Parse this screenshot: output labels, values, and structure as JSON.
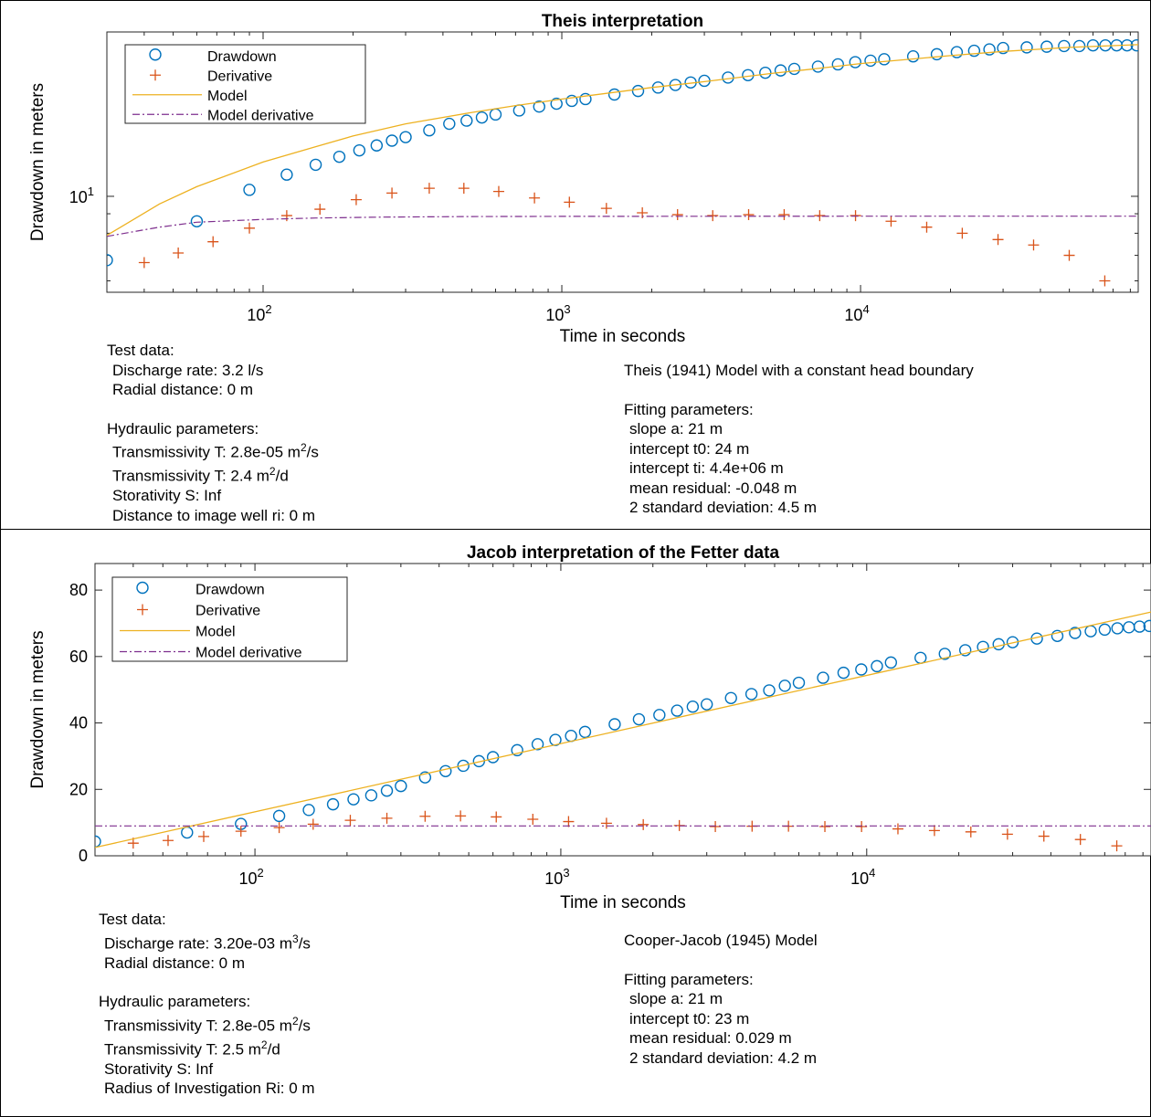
{
  "colors": {
    "drawdown": "#0072BD",
    "derivative": "#D95319",
    "model": "#EDB120",
    "model_derivative": "#7E2F8E"
  },
  "legend_labels": [
    "Drawdown",
    "Derivative",
    "Model",
    "Model derivative"
  ],
  "xtick_labels": {
    "t2": "10",
    "t3": "10",
    "t4": "10",
    "e2": "2",
    "e3": "3",
    "e4": "4"
  },
  "chart_data": [
    {
      "type": "scatter",
      "title": "Theis interpretation",
      "xlabel": "Time in seconds",
      "ylabel": "Drawdown in meters",
      "xscale": "log",
      "yscale": "log",
      "xlim": [
        30,
        85000
      ],
      "ylim": [
        5.6,
        27
      ],
      "ytick_label": {
        "base": "10",
        "exp": "1"
      },
      "legend": "top-left",
      "series": [
        {
          "name": "Drawdown",
          "values": [
            [
              30,
              6.8
            ],
            [
              60,
              8.6
            ],
            [
              90,
              10.4
            ],
            [
              120,
              11.4
            ],
            [
              150,
              12.1
            ],
            [
              180,
              12.7
            ],
            [
              210,
              13.2
            ],
            [
              240,
              13.6
            ],
            [
              270,
              14.0
            ],
            [
              300,
              14.3
            ],
            [
              360,
              14.9
            ],
            [
              420,
              15.5
            ],
            [
              480,
              15.8
            ],
            [
              540,
              16.1
            ],
            [
              600,
              16.4
            ],
            [
              720,
              16.8
            ],
            [
              840,
              17.2
            ],
            [
              960,
              17.5
            ],
            [
              1080,
              17.8
            ],
            [
              1200,
              18.0
            ],
            [
              1500,
              18.5
            ],
            [
              1800,
              18.9
            ],
            [
              2100,
              19.3
            ],
            [
              2400,
              19.6
            ],
            [
              2700,
              19.9
            ],
            [
              3000,
              20.1
            ],
            [
              3600,
              20.5
            ],
            [
              4200,
              20.8
            ],
            [
              4800,
              21.1
            ],
            [
              5400,
              21.4
            ],
            [
              6000,
              21.6
            ],
            [
              7200,
              21.9
            ],
            [
              8400,
              22.2
            ],
            [
              9600,
              22.5
            ],
            [
              10800,
              22.7
            ],
            [
              12000,
              22.9
            ],
            [
              15000,
              23.3
            ],
            [
              18000,
              23.6
            ],
            [
              21000,
              23.9
            ],
            [
              24000,
              24.1
            ],
            [
              27000,
              24.3
            ],
            [
              30000,
              24.5
            ],
            [
              36000,
              24.6
            ],
            [
              42000,
              24.7
            ],
            [
              48000,
              24.8
            ],
            [
              54000,
              24.8
            ],
            [
              60000,
              24.9
            ],
            [
              66000,
              24.9
            ],
            [
              72000,
              24.9
            ],
            [
              78000,
              24.9
            ],
            [
              84000,
              24.9
            ]
          ]
        },
        {
          "name": "Derivative",
          "values": [
            [
              40,
              6.7
            ],
            [
              52,
              7.1
            ],
            [
              68,
              7.6
            ],
            [
              90,
              8.25
            ],
            [
              120,
              8.9
            ],
            [
              155,
              9.25
            ],
            [
              205,
              9.8
            ],
            [
              270,
              10.2
            ],
            [
              360,
              10.5
            ],
            [
              470,
              10.5
            ],
            [
              615,
              10.3
            ],
            [
              810,
              9.9
            ],
            [
              1060,
              9.65
            ],
            [
              1410,
              9.3
            ],
            [
              1860,
              9.05
            ],
            [
              2440,
              8.95
            ],
            [
              3200,
              8.9
            ],
            [
              4220,
              8.95
            ],
            [
              5550,
              8.95
            ],
            [
              7300,
              8.9
            ],
            [
              9620,
              8.9
            ],
            [
              12650,
              8.6
            ],
            [
              16650,
              8.3
            ],
            [
              21900,
              8.0
            ],
            [
              28850,
              7.7
            ],
            [
              37950,
              7.45
            ],
            [
              49950,
              7.0
            ],
            [
              65700,
              6.0
            ]
          ]
        },
        {
          "name": "Model",
          "values": [
            [
              30,
              7.9
            ],
            [
              45,
              9.55
            ],
            [
              60,
              10.6
            ],
            [
              100,
              12.3
            ],
            [
              150,
              13.5
            ],
            [
              200,
              14.4
            ],
            [
              300,
              15.5
            ],
            [
              500,
              16.6
            ],
            [
              700,
              17.3
            ],
            [
              1000,
              18.0
            ],
            [
              2000,
              19.3
            ],
            [
              3000,
              20.0
            ],
            [
              5000,
              21.0
            ],
            [
              7000,
              21.6
            ],
            [
              10000,
              22.3
            ],
            [
              20000,
              23.4
            ],
            [
              30000,
              24.0
            ],
            [
              50000,
              24.6
            ],
            [
              85000,
              25.0
            ]
          ]
        },
        {
          "name": "Model derivative",
          "values": [
            [
              30,
              7.85
            ],
            [
              45,
              8.3
            ],
            [
              60,
              8.55
            ],
            [
              100,
              8.7
            ],
            [
              150,
              8.77
            ],
            [
              250,
              8.82
            ],
            [
              500,
              8.85
            ],
            [
              1000,
              8.86
            ],
            [
              10000,
              8.87
            ],
            [
              85000,
              8.87
            ]
          ]
        }
      ]
    },
    {
      "type": "scatter",
      "title": "Jacob interpretation of the Fetter data",
      "xlabel": "Time in seconds",
      "ylabel": "Drawdown in meters",
      "xscale": "log",
      "yscale": "linear",
      "xlim": [
        30,
        85000
      ],
      "ylim": [
        0,
        88
      ],
      "yticks": [
        0,
        20,
        40,
        60,
        80
      ],
      "legend": "top-left",
      "series": [
        {
          "name": "Drawdown",
          "values": [
            [
              30,
              4.3
            ],
            [
              60,
              7
            ],
            [
              90,
              9.6
            ],
            [
              120,
              12
            ],
            [
              150,
              13.8
            ],
            [
              180,
              15.5
            ],
            [
              210,
              17
            ],
            [
              240,
              18.2
            ],
            [
              270,
              19.6
            ],
            [
              300,
              21
            ],
            [
              360,
              23.6
            ],
            [
              420,
              25.5
            ],
            [
              480,
              27.1
            ],
            [
              540,
              28.5
            ],
            [
              600,
              29.7
            ],
            [
              720,
              31.8
            ],
            [
              840,
              33.6
            ],
            [
              960,
              34.9
            ],
            [
              1080,
              36.1
            ],
            [
              1200,
              37.3
            ],
            [
              1500,
              39.6
            ],
            [
              1800,
              41.1
            ],
            [
              2100,
              42.4
            ],
            [
              2400,
              43.7
            ],
            [
              2700,
              44.9
            ],
            [
              3000,
              45.6
            ],
            [
              3600,
              47.5
            ],
            [
              4200,
              48.7
            ],
            [
              4800,
              49.8
            ],
            [
              5400,
              51.2
            ],
            [
              6000,
              52.1
            ],
            [
              7200,
              53.6
            ],
            [
              8400,
              55.1
            ],
            [
              9600,
              56.1
            ],
            [
              10800,
              57.1
            ],
            [
              12000,
              58.2
            ],
            [
              15000,
              59.6
            ],
            [
              18000,
              60.8
            ],
            [
              21000,
              61.9
            ],
            [
              24000,
              62.9
            ],
            [
              27000,
              63.7
            ],
            [
              30000,
              64.3
            ],
            [
              36000,
              65.4
            ],
            [
              42000,
              66.2
            ],
            [
              48000,
              67.1
            ],
            [
              54000,
              67.6
            ],
            [
              60000,
              68.1
            ],
            [
              66000,
              68.5
            ],
            [
              72000,
              68.8
            ],
            [
              78000,
              69
            ],
            [
              84000,
              69.2
            ]
          ]
        },
        {
          "name": "Derivative",
          "values": [
            [
              40,
              3.8
            ],
            [
              52,
              4.6
            ],
            [
              68,
              5.8
            ],
            [
              90,
              7.4
            ],
            [
              120,
              8.5
            ],
            [
              155,
              9.5
            ],
            [
              205,
              10.7
            ],
            [
              270,
              11.3
            ],
            [
              360,
              11.9
            ],
            [
              470,
              12
            ],
            [
              615,
              11.7
            ],
            [
              810,
              11
            ],
            [
              1060,
              10.3
            ],
            [
              1410,
              9.8
            ],
            [
              1860,
              9.4
            ],
            [
              2440,
              9.1
            ],
            [
              3200,
              8.8
            ],
            [
              4220,
              8.9
            ],
            [
              5550,
              8.9
            ],
            [
              7300,
              8.8
            ],
            [
              9620,
              8.8
            ],
            [
              12650,
              8.1
            ],
            [
              16650,
              7.6
            ],
            [
              21900,
              7.2
            ],
            [
              28850,
              6.5
            ],
            [
              37950,
              5.9
            ],
            [
              49950,
              4.9
            ],
            [
              65700,
              3
            ]
          ]
        },
        {
          "name": "Model",
          "values": [
            [
              30,
              2.5
            ],
            [
              85000,
              73.4
            ]
          ]
        },
        {
          "name": "Model derivative",
          "values": [
            [
              30,
              9
            ],
            [
              85000,
              9
            ]
          ]
        }
      ]
    }
  ],
  "panel1_info": {
    "test_data_heading": "Test data:",
    "discharge_rate": "Discharge rate: 3.2 l/s",
    "radial_distance": "Radial distance: 0 m",
    "hydraulic_heading": "Hydraulic parameters:",
    "transmissivity_1_pre": "Transmissivity T: 2.8e-05 m",
    "transmissivity_1_sup": "2",
    "transmissivity_1_post": "/s",
    "transmissivity_2_pre": "Transmissivity T: 2.4 m",
    "transmissivity_2_sup": "2",
    "transmissivity_2_post": "/d",
    "storativity": "Storativity S: Inf",
    "distance_image_well": "Distance to image well ri: 0 m",
    "model_name": "Theis (1941) Model with a constant head boundary",
    "fitting_heading": "Fitting parameters:",
    "slope": "slope a: 21 m",
    "intercept_t0": "intercept t0: 24 m",
    "intercept_ti": "intercept ti: 4.4e+06 m",
    "mean_residual": "mean residual: -0.048 m",
    "std_dev": "2 standard deviation: 4.5 m"
  },
  "panel2_info": {
    "test_data_heading": "Test data:",
    "discharge_rate_pre": "Discharge rate: 3.20e-03 m",
    "discharge_rate_sup": "3",
    "discharge_rate_post": "/s",
    "radial_distance": "Radial distance: 0 m",
    "hydraulic_heading": "Hydraulic parameters:",
    "transmissivity_1_pre": "Transmissivity T: 2.8e-05 m",
    "transmissivity_1_sup": "2",
    "transmissivity_1_post": "/s",
    "transmissivity_2_pre": "Transmissivity T: 2.5 m",
    "transmissivity_2_sup": "2",
    "transmissivity_2_post": "/d",
    "storativity": "Storativity S: Inf",
    "radius_investigation": "Radius of Investigation Ri: 0 m",
    "model_name": "Cooper-Jacob (1945) Model",
    "fitting_heading": "Fitting parameters:",
    "slope": "slope a: 21 m",
    "intercept_t0": "intercept t0: 23 m",
    "mean_residual": "mean residual: 0.029 m",
    "std_dev": "2 standard deviation: 4.2 m"
  }
}
